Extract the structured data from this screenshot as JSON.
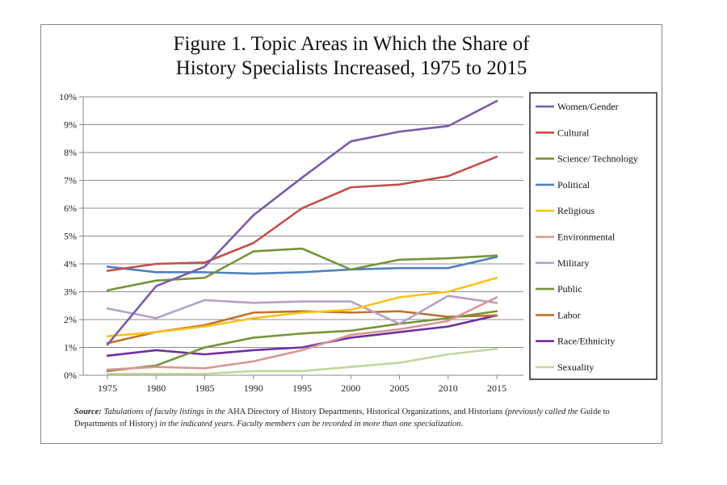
{
  "chart_data": {
    "type": "line",
    "title_line1": "Figure 1. Topic Areas in Which the Share of",
    "title_line2": "History Specialists Increased, 1975 to 2015",
    "x": [
      "1975",
      "1980",
      "1985",
      "1990",
      "1995",
      "2000",
      "2005",
      "2010",
      "2015"
    ],
    "y_ticks": [
      "0%",
      "1%",
      "2%",
      "3%",
      "4%",
      "5%",
      "6%",
      "7%",
      "8%",
      "9%",
      "10%"
    ],
    "ylim": [
      0,
      10
    ],
    "grid": true,
    "legend_position": "right",
    "series": [
      {
        "name": "Women/Gender",
        "color": "#7b5ca6",
        "values": [
          1.1,
          3.2,
          3.9,
          5.75,
          7.1,
          8.4,
          8.75,
          8.95,
          9.85
        ]
      },
      {
        "name": "Cultural",
        "color": "#c0504d",
        "values": [
          3.75,
          4.0,
          4.05,
          4.75,
          6.0,
          6.75,
          6.85,
          7.15,
          7.85
        ]
      },
      {
        "name": "Science/ Technology",
        "color": "#77933c",
        "values": [
          3.05,
          3.4,
          3.5,
          4.45,
          4.55,
          3.8,
          4.15,
          4.2,
          4.3
        ]
      },
      {
        "name": "Political",
        "color": "#4f81bd",
        "values": [
          3.9,
          3.7,
          3.7,
          3.65,
          3.7,
          3.8,
          3.85,
          3.85,
          4.25
        ]
      },
      {
        "name": "Religious",
        "color": "#f8c21c",
        "values": [
          1.4,
          1.55,
          1.75,
          2.05,
          2.25,
          2.35,
          2.8,
          3.0,
          3.5
        ]
      },
      {
        "name": "Environmental",
        "color": "#d99694",
        "values": [
          0.2,
          0.3,
          0.25,
          0.5,
          0.9,
          1.45,
          1.65,
          1.95,
          2.8
        ]
      },
      {
        "name": "Military",
        "color": "#b3a2c7",
        "values": [
          2.4,
          2.05,
          2.7,
          2.6,
          2.65,
          2.65,
          1.85,
          2.85,
          2.6
        ]
      },
      {
        "name": "Public",
        "color": "#77933c",
        "values": [
          0.15,
          0.35,
          1.0,
          1.35,
          1.5,
          1.6,
          1.85,
          2.05,
          2.3
        ]
      },
      {
        "name": "Labor",
        "color": "#c0732d",
        "values": [
          1.15,
          1.55,
          1.8,
          2.25,
          2.3,
          2.25,
          2.3,
          2.1,
          2.15
        ]
      },
      {
        "name": "Race/Ethnicity",
        "color": "#7030a0",
        "values": [
          0.7,
          0.9,
          0.75,
          0.9,
          1.0,
          1.35,
          1.55,
          1.75,
          2.15
        ]
      },
      {
        "name": "Sexuality",
        "color": "#c3d69b",
        "values": [
          0.05,
          0.05,
          0.05,
          0.15,
          0.15,
          0.3,
          0.45,
          0.75,
          0.95
        ]
      }
    ],
    "source": {
      "label": "Source:",
      "text_a": "Tabulations of faculty listings in the",
      "upright_a": "AHA Directory of History Departments, Historical Organizations, and Historians",
      "text_b": "(previously called the",
      "upright_b": "Guide to  Departments of History)",
      "text_c": "in the indicated years.  Faculty members can be recorded in more than one specialization."
    }
  }
}
